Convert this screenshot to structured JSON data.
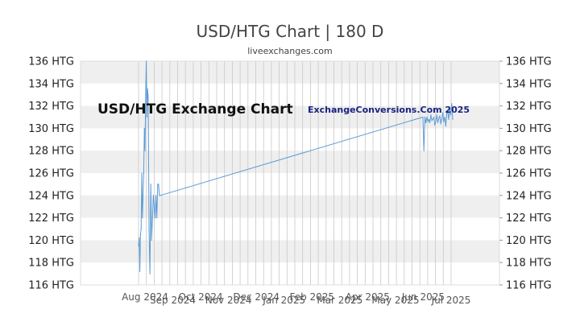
{
  "header": {
    "title": "USD/HTG Chart | 180 D",
    "subtitle": "liveexchanges.com"
  },
  "overlay": {
    "chart_label": "USD/HTG Exchange Chart",
    "watermark": "ExchangeConversions.Com 2025"
  },
  "colors": {
    "line": "#5b9bd5",
    "band": "#efefef",
    "grid_vertical": "#c8c8c8",
    "text": "#444444"
  },
  "chart_data": {
    "type": "line",
    "title": "USD/HTG Chart | 180 D",
    "xlabel": "",
    "ylabel": "",
    "ylim": [
      116,
      136
    ],
    "y_ticks": [
      "116 HTG",
      "118 HTG",
      "120 HTG",
      "122 HTG",
      "124 HTG",
      "126 HTG",
      "128 HTG",
      "130 HTG",
      "132 HTG",
      "134 HTG",
      "136 HTG"
    ],
    "x_tick_labels": [
      "Aug 2024",
      "Sep 2024",
      "Oct 2024",
      "Nov 2024",
      "Dec 2024",
      "Jan 2025",
      "Feb 2025",
      "Mar 2025",
      "Apr 2025",
      "May 2025",
      "Jun 2025",
      "Jul 2025"
    ],
    "grid": true,
    "legend": "none",
    "series": [
      {
        "values": [
          119.5,
          120.2,
          117.2,
          120.5,
          121,
          126,
          122,
          124,
          126,
          130,
          128,
          133,
          136,
          131,
          133.5,
          132.8,
          121,
          117,
          125,
          120,
          122,
          124,
          123,
          122,
          124,
          122,
          125,
          125,
          124,
          124,
          131,
          128,
          131,
          130.5,
          131,
          130.6,
          130.8,
          130.5,
          131.2,
          130.7,
          130.8,
          131,
          130.3,
          130.6,
          131.2,
          130.5,
          130.9,
          131.1,
          130.4,
          130.8,
          131.4,
          130.6,
          131,
          130.2,
          131.3,
          131.5,
          130.8,
          131.7,
          131.2,
          132.2,
          130.8
        ]
      }
    ]
  }
}
